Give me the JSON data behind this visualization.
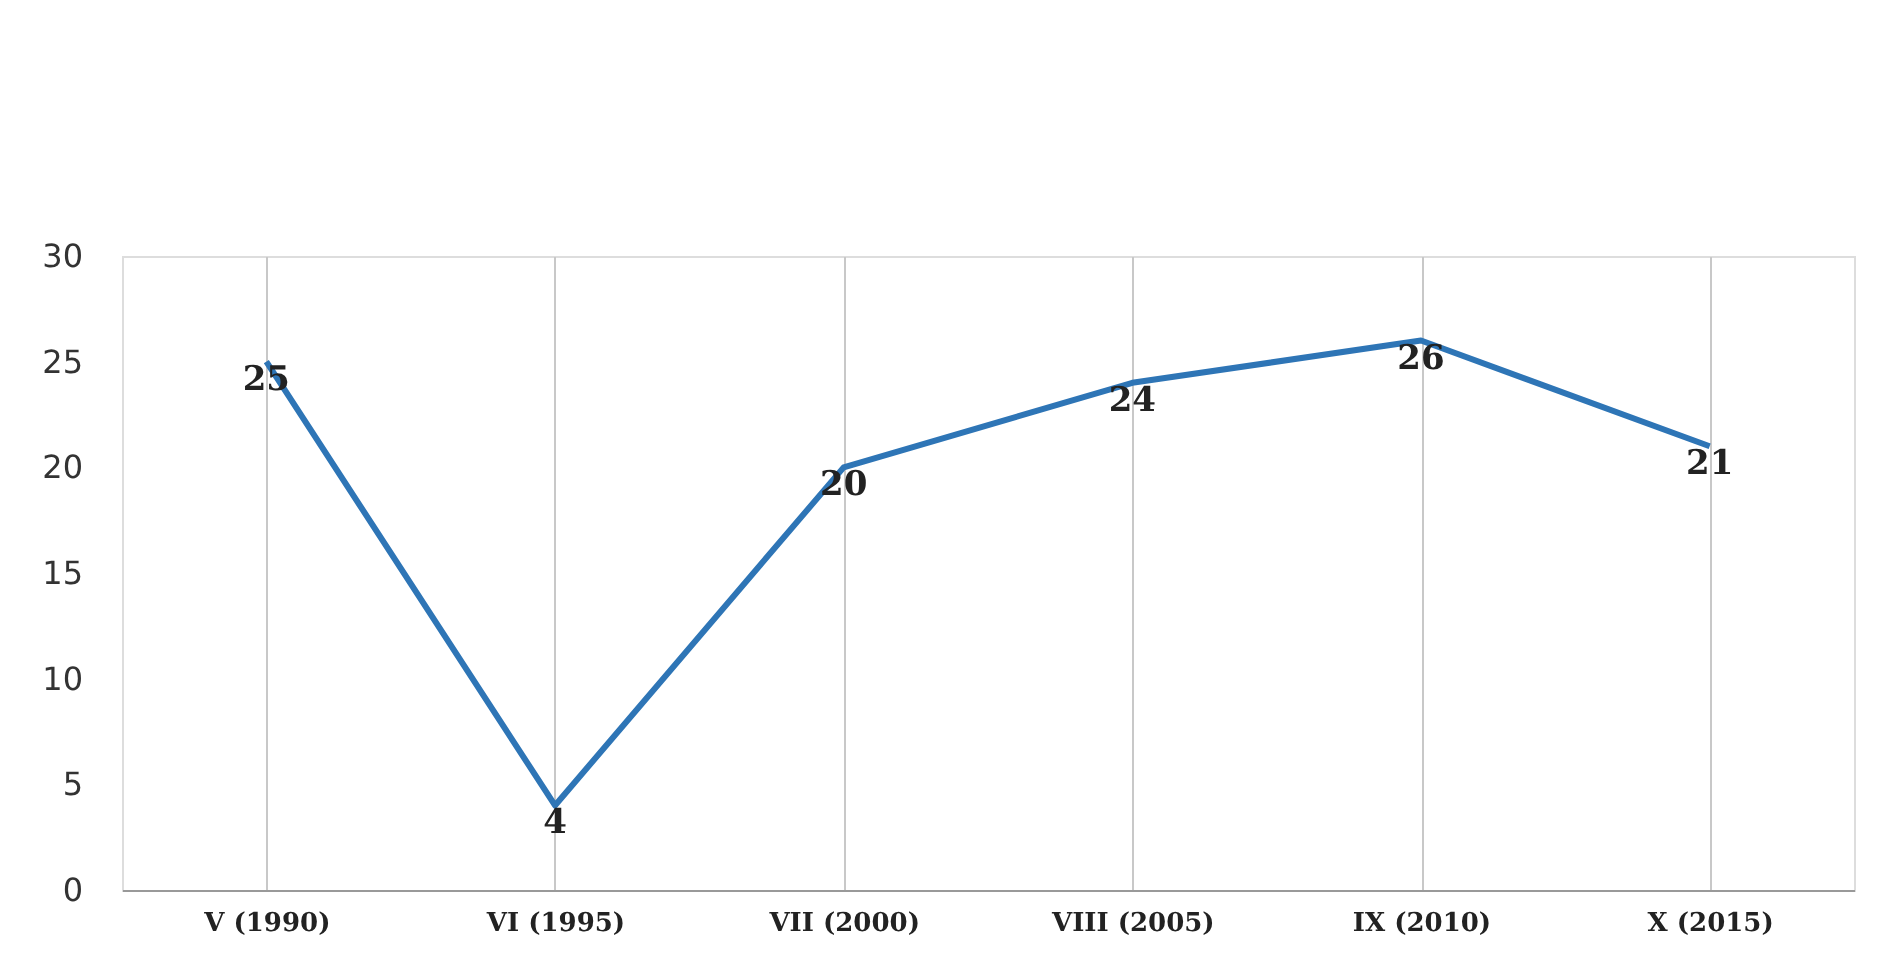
{
  "chart_data": {
    "type": "line",
    "categories": [
      "V (1990)",
      "VI (1995)",
      "VII (2000)",
      "VIII (2005)",
      "IX (2010)",
      "X (2015)"
    ],
    "series": [
      {
        "color": "#2e75b6",
        "values": [
          25,
          4,
          20,
          24,
          26,
          21
        ]
      }
    ],
    "ylim": [
      0,
      30
    ],
    "yticks": [
      0,
      5,
      10,
      15,
      20,
      25,
      30
    ],
    "grid": "x",
    "marker": "none",
    "line_style": "solid",
    "data_labels": true
  }
}
